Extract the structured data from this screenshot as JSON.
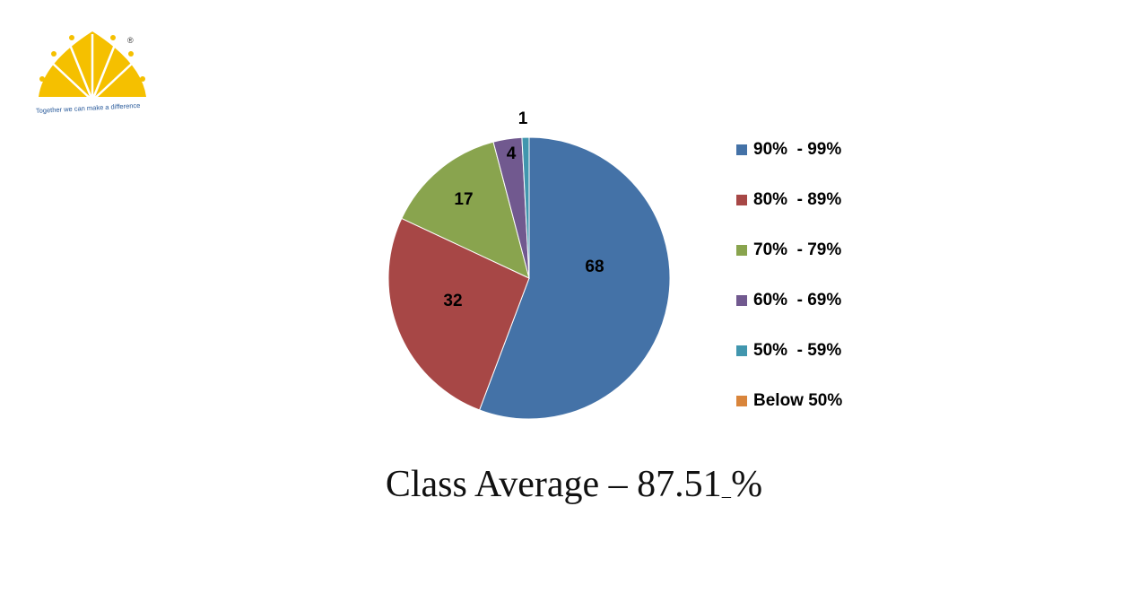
{
  "logo": {
    "tagline": "Together we can make a difference",
    "registered": "®"
  },
  "chart_data": {
    "type": "pie",
    "categories": [
      "90%  - 99%",
      "80%  - 89%",
      "70%  - 79%",
      "60%  - 69%",
      "50%  - 59%",
      "Below 50%"
    ],
    "values": [
      68,
      32,
      17,
      4,
      1,
      0
    ],
    "data_labels": [
      "68",
      "32",
      "17",
      "4",
      "1",
      ""
    ],
    "colors": [
      "#4472A7",
      "#A74746",
      "#89A44E",
      "#71598F",
      "#4196AE",
      "#D9853B"
    ],
    "legend_position": "right"
  },
  "caption": {
    "prefix": "Class Average – 87.51",
    "underlined": " ",
    "suffix": "%"
  }
}
